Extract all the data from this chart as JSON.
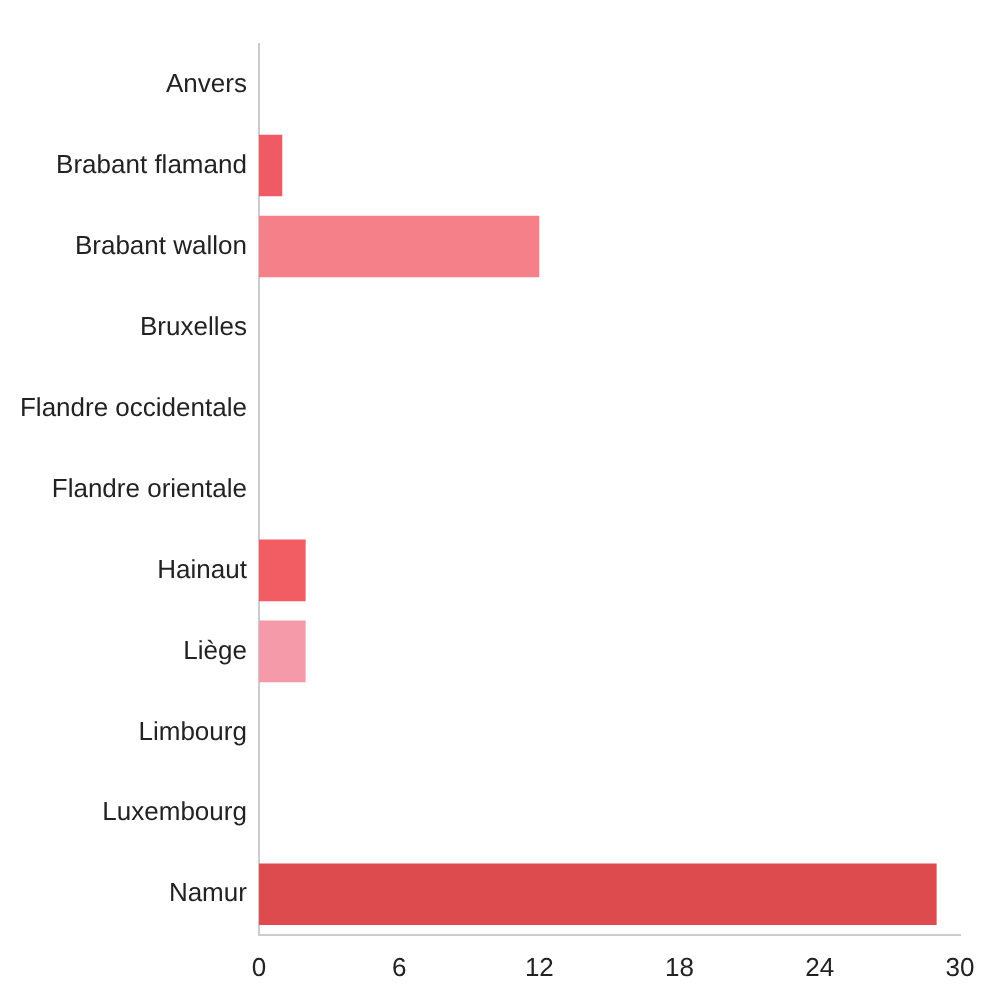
{
  "chart_data": {
    "type": "bar",
    "orientation": "horizontal",
    "categories": [
      "Anvers",
      "Brabant flamand",
      "Brabant wallon",
      "Bruxelles",
      "Flandre occidentale",
      "Flandre orientale",
      "Hainaut",
      "Liège",
      "Limbourg",
      "Luxembourg",
      "Namur"
    ],
    "values": [
      0,
      1,
      12,
      0,
      0,
      0,
      2,
      2,
      0,
      0,
      29
    ],
    "colors": [
      "#f05a64",
      "#f05a64",
      "#f5808a",
      "#f05a64",
      "#f05a64",
      "#f05a64",
      "#f25c63",
      "#f59aa8",
      "#f05a64",
      "#f05a64",
      "#dd4b4e"
    ],
    "xlim": [
      0,
      30
    ],
    "xticks": [
      0,
      6,
      12,
      18,
      24,
      30
    ],
    "grid": false,
    "legend": false
  }
}
